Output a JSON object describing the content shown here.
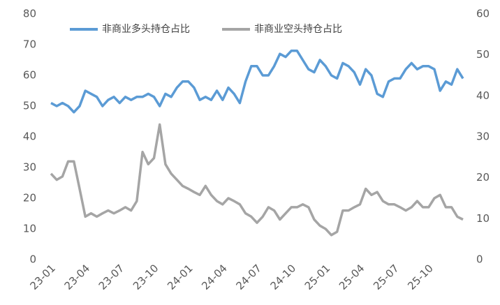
{
  "chart_data": {
    "type": "line",
    "categories": [
      "23-01",
      null,
      null,
      null,
      null,
      null,
      "23-04",
      null,
      null,
      null,
      null,
      null,
      "23-07",
      null,
      null,
      null,
      null,
      null,
      "23-10",
      null,
      null,
      null,
      null,
      null,
      "24-01",
      null,
      null,
      null,
      null,
      null,
      "24-04",
      null,
      null,
      null,
      null,
      null,
      "24-07",
      null,
      null,
      null,
      null,
      null,
      "24-10",
      null,
      null,
      null,
      null,
      null,
      "25-01",
      null,
      null,
      null,
      null,
      null,
      "25-04",
      null,
      null,
      null,
      null,
      null,
      "25-07",
      null,
      null,
      null,
      null,
      null,
      "25-10",
      null,
      null,
      null,
      null,
      null,
      null
    ],
    "ylim": [
      0,
      80
    ],
    "yticks": [
      0,
      10,
      20,
      30,
      40,
      50,
      60,
      70,
      80
    ],
    "y2lim": [
      0,
      60
    ],
    "y2ticks": [
      0,
      10,
      20,
      30,
      40,
      50,
      60
    ],
    "legend": "top-left",
    "series": [
      {
        "name": "非商业多头持仓占比",
        "color": "#5b9bd5",
        "values": [
          51,
          50,
          51,
          50,
          48,
          50,
          55,
          54,
          53,
          50,
          52,
          53,
          51,
          53,
          52,
          53,
          53,
          54,
          53,
          50,
          54,
          53,
          56,
          58,
          58,
          56,
          52,
          53,
          52,
          55,
          52,
          56,
          54,
          51,
          58,
          63,
          63,
          60,
          60,
          63,
          67,
          66,
          68,
          68,
          65,
          62,
          61,
          65,
          63,
          60,
          59,
          64,
          63,
          61,
          57,
          62,
          60,
          54,
          53,
          58,
          59,
          59,
          62,
          64,
          62,
          63,
          63,
          62,
          55,
          58,
          57,
          62,
          59
        ]
      },
      {
        "name": "非商业空头持仓占比",
        "color": "#a5a5a5",
        "axis": "y2",
        "values": [
          21,
          19.5,
          20.3,
          24,
          24,
          17.3,
          10.5,
          11.3,
          10.5,
          11.3,
          12,
          11.3,
          12,
          12.8,
          12,
          14.3,
          26.3,
          23.3,
          24.8,
          33,
          23.3,
          21,
          19.5,
          18,
          17.3,
          16.5,
          15.8,
          18,
          15.8,
          14.3,
          13.5,
          15,
          14.3,
          13.5,
          11.3,
          10.5,
          9,
          10.5,
          12.8,
          12,
          9.8,
          11.3,
          12.8,
          12.8,
          13.5,
          12.8,
          9.8,
          8.3,
          7.5,
          6,
          6.8,
          12,
          12,
          12.8,
          13.5,
          17.3,
          15.8,
          16.5,
          14.3,
          13.5,
          13.5,
          12.8,
          12,
          12.8,
          14.3,
          12.8,
          12.8,
          15,
          15.8,
          12.8,
          12.8,
          10.5,
          9.8
        ]
      }
    ]
  }
}
